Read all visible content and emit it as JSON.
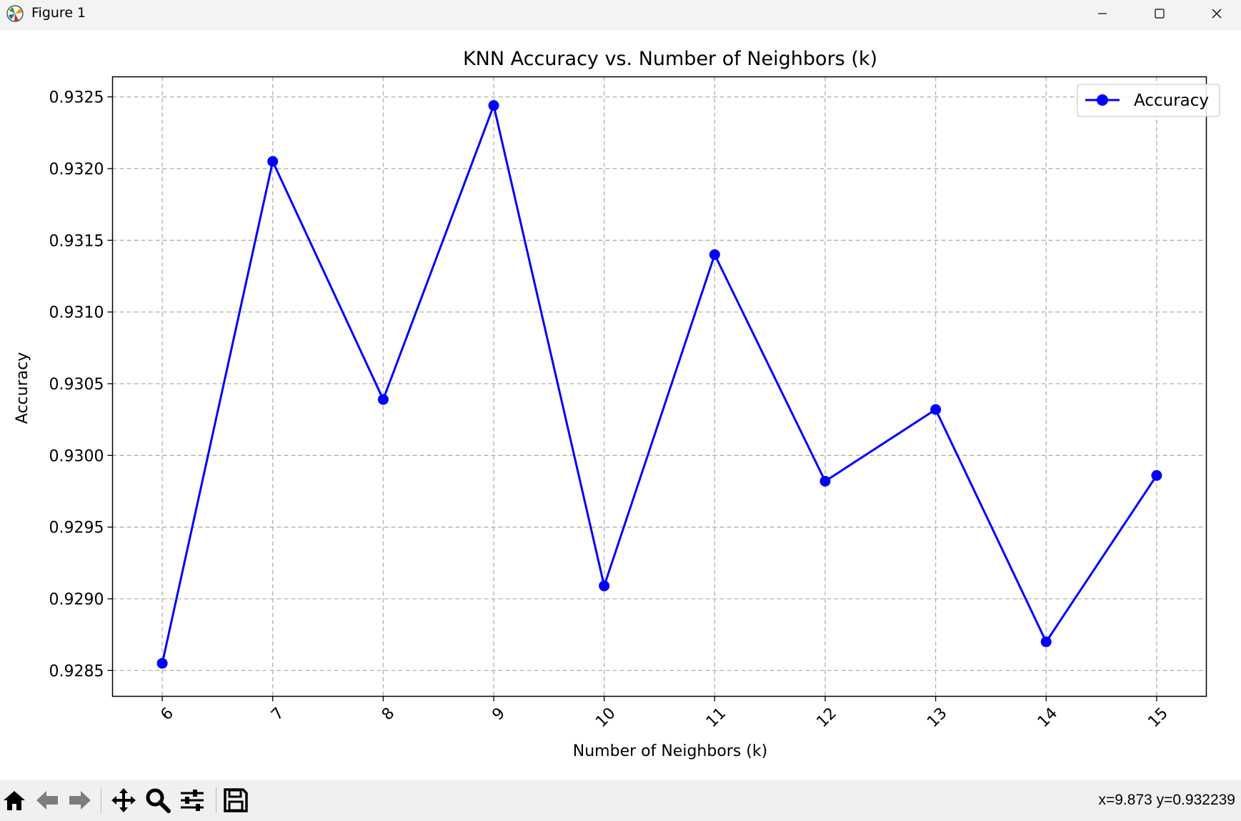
{
  "window": {
    "title": "Figure 1",
    "icons": {
      "app": "matplotlib-icon",
      "minimize": "minimize-icon",
      "maximize": "maximize-icon",
      "close": "close-icon"
    }
  },
  "toolbar": {
    "tools": [
      "home-icon",
      "back-arrow-icon",
      "forward-arrow-icon",
      "pan-icon",
      "zoom-icon",
      "configure-subplots-icon",
      "save-icon"
    ],
    "coordinates": "x=9.873 y=0.932239"
  },
  "chart_data": {
    "type": "line",
    "title": "KNN Accuracy vs. Number of Neighbors (k)",
    "xlabel": "Number of Neighbors (k)",
    "ylabel": "Accuracy",
    "x": [
      6,
      7,
      8,
      9,
      10,
      11,
      12,
      13,
      14,
      15
    ],
    "x_tick_labels": [
      "6",
      "7",
      "8",
      "9",
      "10",
      "11",
      "12",
      "13",
      "14",
      "15"
    ],
    "x_tick_rotation_deg": 45,
    "y_ticks": [
      0.9285,
      0.929,
      0.9295,
      0.93,
      0.9305,
      0.931,
      0.9315,
      0.932,
      0.9325
    ],
    "y_tick_labels": [
      "0.9285",
      "0.9290",
      "0.9295",
      "0.9300",
      "0.9305",
      "0.9310",
      "0.9315",
      "0.9320",
      "0.9325"
    ],
    "xlim": [
      5.55,
      15.45
    ],
    "ylim": [
      0.92832,
      0.93264
    ],
    "grid": true,
    "grid_style": "dashed",
    "legend_position": "upper right",
    "series": [
      {
        "name": "Accuracy",
        "color": "#0000ff",
        "marker": "circle",
        "values": [
          0.92855,
          0.93205,
          0.93039,
          0.93244,
          0.92909,
          0.9314,
          0.92982,
          0.93032,
          0.9287,
          0.92986
        ]
      }
    ]
  }
}
